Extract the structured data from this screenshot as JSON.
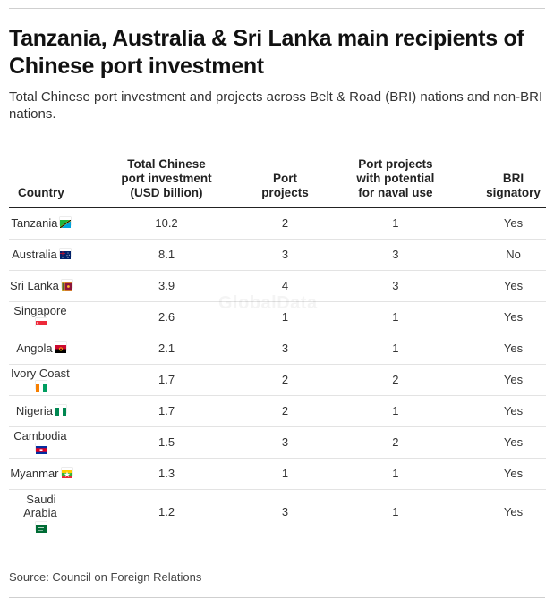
{
  "title": "Tanzania, Australia & Sri Lanka main recipients of Chinese port investment",
  "subtitle": "Total Chinese port investment and projects across Belt & Road (BRI) nations and non-BRI nations.",
  "watermark": "GlobalData",
  "source": "Source: Council on Foreign Relations",
  "chart_data": {
    "type": "table",
    "columns": [
      "Country",
      "Total Chinese port investment (USD billion)",
      "Port projects",
      "Port projects with potential for naval use",
      "BRI signatory"
    ],
    "rows": [
      {
        "country": "Tanzania",
        "flag": "tanzania-flag-icon",
        "investment": "10.2",
        "projects": "2",
        "naval": "1",
        "bri": "Yes"
      },
      {
        "country": "Australia",
        "flag": "australia-flag-icon",
        "investment": "8.1",
        "projects": "3",
        "naval": "3",
        "bri": "No"
      },
      {
        "country": "Sri Lanka",
        "flag": "sri-lanka-flag-icon",
        "investment": "3.9",
        "projects": "4",
        "naval": "3",
        "bri": "Yes"
      },
      {
        "country": "Singapore",
        "flag": "singapore-flag-icon",
        "investment": "2.6",
        "projects": "1",
        "naval": "1",
        "bri": "Yes"
      },
      {
        "country": "Angola",
        "flag": "angola-flag-icon",
        "investment": "2.1",
        "projects": "3",
        "naval": "1",
        "bri": "Yes"
      },
      {
        "country": "Ivory Coast",
        "flag": "ivory-coast-flag-icon",
        "investment": "1.7",
        "projects": "2",
        "naval": "2",
        "bri": "Yes"
      },
      {
        "country": "Nigeria",
        "flag": "nigeria-flag-icon",
        "investment": "1.7",
        "projects": "2",
        "naval": "1",
        "bri": "Yes"
      },
      {
        "country": "Cambodia",
        "flag": "cambodia-flag-icon",
        "investment": "1.5",
        "projects": "3",
        "naval": "2",
        "bri": "Yes"
      },
      {
        "country": "Myanmar",
        "flag": "myanmar-flag-icon",
        "investment": "1.3",
        "projects": "1",
        "naval": "1",
        "bri": "Yes"
      },
      {
        "country": "Saudi Arabia",
        "flag": "saudi-arabia-flag-icon",
        "investment": "1.2",
        "projects": "3",
        "naval": "1",
        "bri": "Yes"
      }
    ]
  }
}
